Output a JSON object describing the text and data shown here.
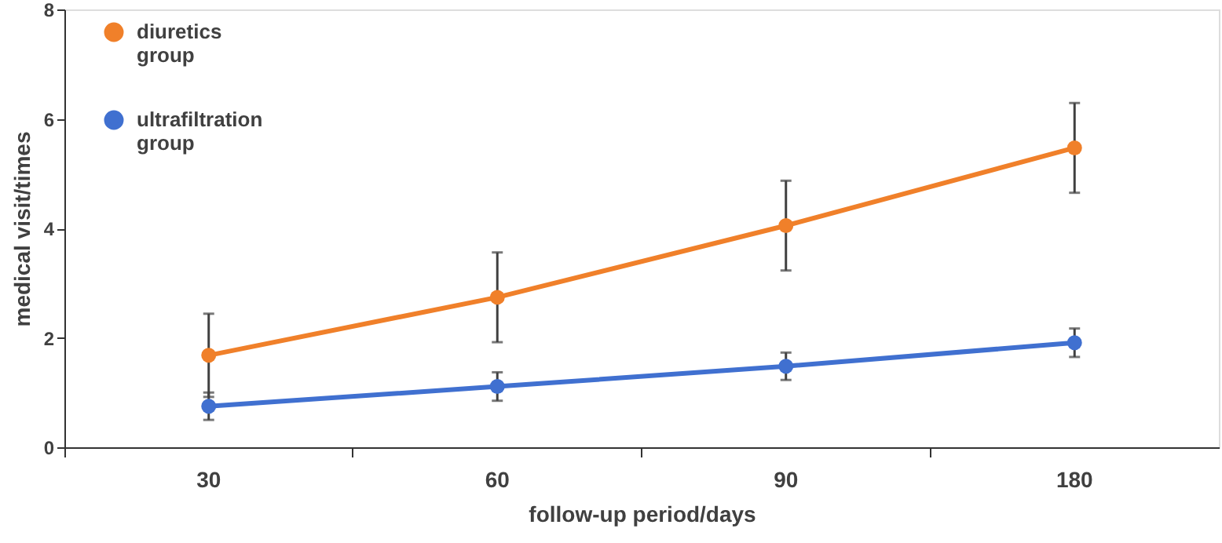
{
  "chart_data": {
    "type": "line",
    "xlabel": "follow-up period/days",
    "ylabel": "medical visit/times",
    "categories": [
      "30",
      "60",
      "90",
      "180"
    ],
    "series": [
      {
        "name": "diuretics group",
        "color": "#f0802a",
        "values": [
          1.68,
          2.74,
          4.05,
          5.47
        ],
        "errors": [
          0.76,
          0.82,
          0.82,
          0.82
        ]
      },
      {
        "name": "ultrafiltration group",
        "color": "#4070d0",
        "values": [
          0.75,
          1.11,
          1.48,
          1.91
        ],
        "errors": [
          0.25,
          0.26,
          0.25,
          0.26
        ]
      }
    ],
    "ylim": [
      0,
      8
    ],
    "yticks": [
      0,
      2,
      4,
      6,
      8
    ],
    "grid": false,
    "legend": "top left",
    "marker": "circle",
    "line_style": "solid"
  }
}
